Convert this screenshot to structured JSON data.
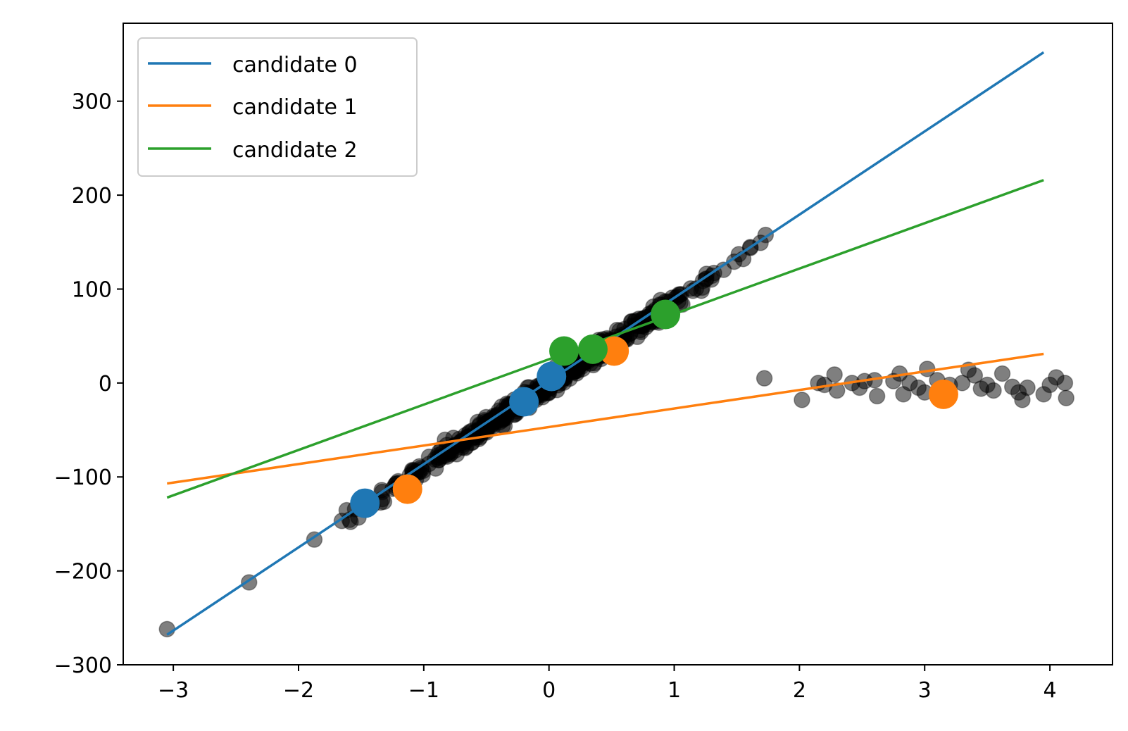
{
  "chart_data": {
    "type": "scatter",
    "title": "",
    "xlabel": "",
    "ylabel": "",
    "xlim": [
      -3.4,
      4.5
    ],
    "ylim": [
      -300,
      383
    ],
    "grid": false,
    "legend_position": "top-left",
    "x_ticks": [
      -3,
      -2,
      -1,
      0,
      1,
      2,
      3,
      4
    ],
    "y_ticks": [
      -300,
      -200,
      -100,
      0,
      100,
      200,
      300
    ],
    "x_tick_labels": [
      "−3",
      "−2",
      "−1",
      "0",
      "1",
      "2",
      "3",
      "4"
    ],
    "y_tick_labels": [
      "−300",
      "−200",
      "−100",
      "0",
      "100",
      "200",
      "300"
    ],
    "lines": [
      {
        "name": "candidate 0",
        "color": "#1f77b4",
        "x": [
          -3.05,
          3.95
        ],
        "y": [
          -268,
          352
        ],
        "points": [
          [
            -1.47,
            -128
          ],
          [
            -0.2,
            -20
          ],
          [
            0.02,
            7
          ]
        ]
      },
      {
        "name": "candidate 1",
        "color": "#ff7f0e",
        "x": [
          -3.05,
          3.95
        ],
        "y": [
          -107,
          31
        ],
        "points": [
          [
            -1.13,
            -113
          ],
          [
            0.52,
            34
          ],
          [
            3.15,
            -12
          ]
        ]
      },
      {
        "name": "candidate 2",
        "color": "#2ca02c",
        "x": [
          -3.05,
          3.95
        ],
        "y": [
          -122,
          216
        ],
        "points": [
          [
            0.12,
            34
          ],
          [
            0.35,
            36
          ],
          [
            0.93,
            73
          ]
        ]
      }
    ],
    "scatter_color": "#000000",
    "scatter_opacity": 0.5,
    "outlier_points": [
      [
        1.72,
        5
      ],
      [
        2.02,
        -18
      ],
      [
        2.15,
        0
      ],
      [
        2.2,
        -2
      ],
      [
        2.28,
        9
      ],
      [
        2.3,
        -8
      ],
      [
        2.42,
        0
      ],
      [
        2.48,
        -5
      ],
      [
        2.52,
        2
      ],
      [
        2.6,
        3
      ],
      [
        2.62,
        -14
      ],
      [
        2.75,
        2
      ],
      [
        2.8,
        10
      ],
      [
        2.83,
        -12
      ],
      [
        2.88,
        0
      ],
      [
        2.95,
        -5
      ],
      [
        3.0,
        -10
      ],
      [
        3.02,
        15
      ],
      [
        3.1,
        3
      ],
      [
        3.2,
        -2
      ],
      [
        3.3,
        0
      ],
      [
        3.35,
        14
      ],
      [
        3.4,
        8
      ],
      [
        3.45,
        -6
      ],
      [
        3.5,
        -2
      ],
      [
        3.55,
        -8
      ],
      [
        3.62,
        10
      ],
      [
        3.7,
        -4
      ],
      [
        3.75,
        -10
      ],
      [
        3.78,
        -18
      ],
      [
        3.82,
        -5
      ],
      [
        3.95,
        -12
      ],
      [
        4.0,
        -2
      ],
      [
        4.05,
        6
      ],
      [
        4.12,
        0
      ],
      [
        4.13,
        -16
      ]
    ]
  }
}
